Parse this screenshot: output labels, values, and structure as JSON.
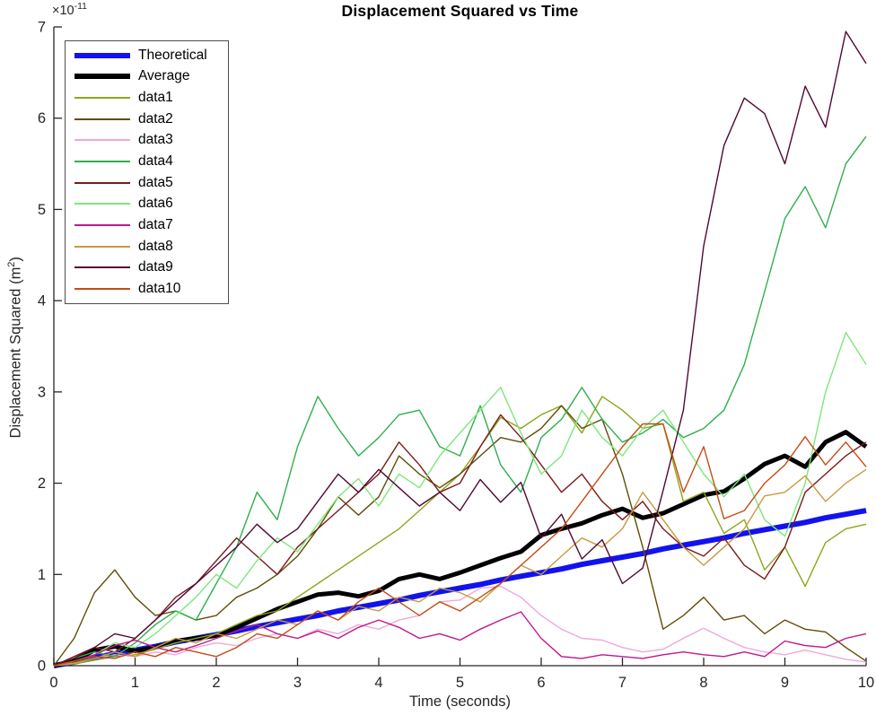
{
  "figure": {
    "title": "Displacement Squared vs Time",
    "xlabel": "Time (seconds)",
    "ylabel_pre": "Displacement Squared (m",
    "ylabel_sup": "2",
    "ylabel_post": ")",
    "y_scale_base": "×10",
    "y_scale_exp": "-11",
    "axis_color": "#262626",
    "background": "#ffffff"
  },
  "chart_data": {
    "type": "line",
    "title": "Displacement Squared vs Time",
    "xlabel": "Time (seconds)",
    "ylabel": "Displacement Squared (m^2)",
    "value_units": "1e-11 m^2",
    "xlim": [
      0,
      10
    ],
    "ylim": [
      0,
      7
    ],
    "x_ticks": [
      0,
      1,
      2,
      3,
      4,
      5,
      6,
      7,
      8,
      9,
      10
    ],
    "y_ticks": [
      0,
      1,
      2,
      3,
      4,
      5,
      6,
      7
    ],
    "grid": false,
    "legend_position": "top-left",
    "x": [
      0,
      0.25,
      0.5,
      0.75,
      1,
      1.25,
      1.5,
      1.75,
      2,
      2.25,
      2.5,
      2.75,
      3,
      3.25,
      3.5,
      3.75,
      4,
      4.25,
      4.5,
      4.75,
      5,
      5.25,
      5.5,
      5.75,
      6,
      6.25,
      6.5,
      6.75,
      7,
      7.25,
      7.5,
      7.75,
      8,
      8.25,
      8.5,
      8.75,
      9,
      9.25,
      9.5,
      9.75,
      10
    ],
    "series": [
      {
        "name": "Theoretical",
        "color": "#1212ee",
        "width": 6,
        "values": [
          0,
          0.04,
          0.09,
          0.13,
          0.17,
          0.21,
          0.26,
          0.3,
          0.34,
          0.38,
          0.43,
          0.47,
          0.51,
          0.55,
          0.6,
          0.64,
          0.68,
          0.72,
          0.77,
          0.81,
          0.85,
          0.89,
          0.94,
          0.98,
          1.02,
          1.06,
          1.11,
          1.15,
          1.19,
          1.23,
          1.28,
          1.32,
          1.36,
          1.4,
          1.45,
          1.49,
          1.53,
          1.57,
          1.62,
          1.66,
          1.7
        ]
      },
      {
        "name": "Average",
        "color": "#000000",
        "width": 5,
        "values": [
          0,
          0.05,
          0.17,
          0.21,
          0.16,
          0.2,
          0.27,
          0.3,
          0.33,
          0.42,
          0.52,
          0.62,
          0.7,
          0.78,
          0.8,
          0.76,
          0.82,
          0.95,
          1.0,
          0.95,
          1.02,
          1.1,
          1.18,
          1.25,
          1.43,
          1.5,
          1.56,
          1.65,
          1.72,
          1.62,
          1.67,
          1.77,
          1.87,
          1.91,
          2.05,
          2.21,
          2.3,
          2.18,
          2.45,
          2.56,
          2.4
        ]
      },
      {
        "name": "data1",
        "color": "#8ba71b",
        "width": 1.4,
        "values": [
          0,
          0.02,
          0.06,
          0.1,
          0.12,
          0.18,
          0.25,
          0.3,
          0.35,
          0.45,
          0.55,
          0.6,
          0.75,
          0.9,
          1.05,
          1.2,
          1.35,
          1.5,
          1.7,
          1.9,
          2.1,
          2.4,
          2.72,
          2.6,
          2.75,
          2.85,
          2.55,
          2.95,
          2.8,
          2.6,
          2.65,
          1.8,
          1.9,
          1.45,
          1.6,
          1.05,
          1.3,
          0.87,
          1.35,
          1.5,
          1.55
        ]
      },
      {
        "name": "data2",
        "color": "#5f4e06",
        "width": 1.4,
        "values": [
          0,
          0.3,
          0.8,
          1.05,
          0.75,
          0.55,
          0.6,
          0.5,
          0.55,
          0.75,
          0.85,
          1.0,
          1.2,
          1.5,
          1.85,
          1.65,
          1.85,
          2.3,
          2.1,
          1.95,
          2.1,
          2.3,
          2.5,
          2.45,
          2.6,
          2.85,
          2.6,
          2.7,
          2.1,
          1.3,
          0.4,
          0.55,
          0.75,
          0.5,
          0.55,
          0.35,
          0.5,
          0.4,
          0.37,
          0.2,
          0.05
        ]
      },
      {
        "name": "data3",
        "color": "#f0a8db",
        "width": 1.4,
        "values": [
          0,
          0.03,
          0.08,
          0.12,
          0.1,
          0.15,
          0.12,
          0.2,
          0.25,
          0.22,
          0.3,
          0.35,
          0.3,
          0.4,
          0.35,
          0.45,
          0.4,
          0.5,
          0.55,
          0.7,
          0.72,
          0.85,
          0.87,
          0.75,
          0.55,
          0.4,
          0.3,
          0.28,
          0.2,
          0.15,
          0.18,
          0.3,
          0.41,
          0.3,
          0.2,
          0.15,
          0.12,
          0.17,
          0.12,
          0.07,
          0.04
        ]
      },
      {
        "name": "data4",
        "color": "#2db04d",
        "width": 1.4,
        "values": [
          0,
          0.08,
          0.15,
          0.1,
          0.25,
          0.45,
          0.6,
          0.5,
          0.9,
          1.3,
          1.9,
          1.6,
          2.4,
          2.95,
          2.6,
          2.3,
          2.5,
          2.75,
          2.8,
          2.4,
          2.3,
          2.85,
          2.2,
          1.9,
          2.5,
          2.7,
          3.05,
          2.7,
          2.45,
          2.55,
          2.7,
          2.5,
          2.6,
          2.8,
          3.3,
          4.1,
          4.9,
          5.25,
          4.8,
          5.5,
          5.8
        ]
      },
      {
        "name": "data5",
        "color": "#7a1a1e",
        "width": 1.4,
        "values": [
          0,
          0.1,
          0.2,
          0.15,
          0.3,
          0.5,
          0.75,
          0.9,
          1.15,
          1.4,
          1.2,
          1.0,
          1.3,
          1.5,
          1.7,
          1.9,
          2.1,
          2.45,
          2.2,
          1.9,
          2.0,
          2.4,
          2.75,
          2.5,
          2.2,
          1.9,
          2.1,
          1.8,
          1.6,
          1.8,
          1.5,
          1.3,
          1.2,
          1.4,
          1.1,
          0.95,
          1.3,
          1.9,
          2.1,
          2.3,
          2.45
        ]
      },
      {
        "name": "data6",
        "color": "#7ce87b",
        "width": 1.4,
        "values": [
          0,
          0.05,
          0.12,
          0.25,
          0.2,
          0.35,
          0.55,
          0.75,
          1.0,
          0.85,
          1.15,
          1.4,
          1.25,
          1.55,
          1.85,
          2.05,
          1.75,
          2.1,
          1.95,
          2.3,
          2.55,
          2.8,
          3.05,
          2.55,
          2.1,
          2.3,
          2.8,
          2.5,
          2.3,
          2.6,
          2.8,
          2.45,
          2.1,
          1.85,
          2.1,
          1.6,
          1.42,
          2.0,
          3.0,
          3.65,
          3.3
        ]
      },
      {
        "name": "data7",
        "color": "#c1178d",
        "width": 1.4,
        "values": [
          0,
          0.05,
          0.12,
          0.22,
          0.28,
          0.2,
          0.15,
          0.22,
          0.3,
          0.38,
          0.45,
          0.35,
          0.3,
          0.38,
          0.3,
          0.42,
          0.5,
          0.42,
          0.3,
          0.35,
          0.28,
          0.4,
          0.5,
          0.59,
          0.3,
          0.1,
          0.08,
          0.12,
          0.1,
          0.08,
          0.12,
          0.15,
          0.12,
          0.1,
          0.15,
          0.1,
          0.27,
          0.22,
          0.2,
          0.3,
          0.35
        ]
      },
      {
        "name": "data8",
        "color": "#c79a3f",
        "width": 1.4,
        "values": [
          0,
          0.03,
          0.08,
          0.15,
          0.1,
          0.2,
          0.3,
          0.25,
          0.35,
          0.3,
          0.4,
          0.5,
          0.45,
          0.6,
          0.5,
          0.65,
          0.6,
          0.75,
          0.7,
          0.85,
          0.8,
          0.7,
          0.9,
          1.1,
          1.0,
          1.2,
          1.4,
          1.3,
          1.5,
          1.9,
          1.6,
          1.3,
          1.1,
          1.3,
          1.5,
          1.86,
          1.9,
          2.08,
          1.8,
          2.0,
          2.15
        ]
      },
      {
        "name": "data9",
        "color": "#510834",
        "width": 1.4,
        "values": [
          0,
          0.08,
          0.2,
          0.35,
          0.3,
          0.5,
          0.7,
          0.9,
          1.1,
          1.3,
          1.55,
          1.35,
          1.5,
          1.8,
          2.1,
          1.9,
          2.15,
          1.95,
          1.75,
          1.9,
          1.7,
          2.04,
          1.79,
          2.01,
          1.4,
          1.66,
          1.17,
          1.38,
          0.9,
          1.07,
          1.92,
          2.8,
          4.6,
          5.7,
          6.22,
          6.05,
          5.5,
          6.35,
          5.9,
          6.95,
          6.6
        ]
      },
      {
        "name": "data10",
        "color": "#c54d16",
        "width": 1.4,
        "values": [
          0,
          0.05,
          0.1,
          0.08,
          0.15,
          0.1,
          0.2,
          0.15,
          0.1,
          0.2,
          0.35,
          0.3,
          0.45,
          0.6,
          0.5,
          0.7,
          0.85,
          0.7,
          0.55,
          0.7,
          0.6,
          0.75,
          0.9,
          1.1,
          1.3,
          1.5,
          1.8,
          2.1,
          2.4,
          2.65,
          2.65,
          1.9,
          2.4,
          1.61,
          1.7,
          2.0,
          2.2,
          2.51,
          2.2,
          2.45,
          2.18
        ]
      }
    ]
  },
  "legend": {
    "entries": [
      {
        "label": "Theoretical",
        "color": "#1212ee",
        "thick": true
      },
      {
        "label": "Average",
        "color": "#000000",
        "thick": true
      },
      {
        "label": "data1",
        "color": "#8ba71b",
        "thick": false
      },
      {
        "label": "data2",
        "color": "#5f4e06",
        "thick": false
      },
      {
        "label": "data3",
        "color": "#f0a8db",
        "thick": false
      },
      {
        "label": "data4",
        "color": "#2db04d",
        "thick": false
      },
      {
        "label": "data5",
        "color": "#7a1a1e",
        "thick": false
      },
      {
        "label": "data6",
        "color": "#7ce87b",
        "thick": false
      },
      {
        "label": "data7",
        "color": "#c1178d",
        "thick": false
      },
      {
        "label": "data8",
        "color": "#c79a3f",
        "thick": false
      },
      {
        "label": "data9",
        "color": "#510834",
        "thick": false
      },
      {
        "label": "data10",
        "color": "#c54d16",
        "thick": false
      }
    ]
  }
}
